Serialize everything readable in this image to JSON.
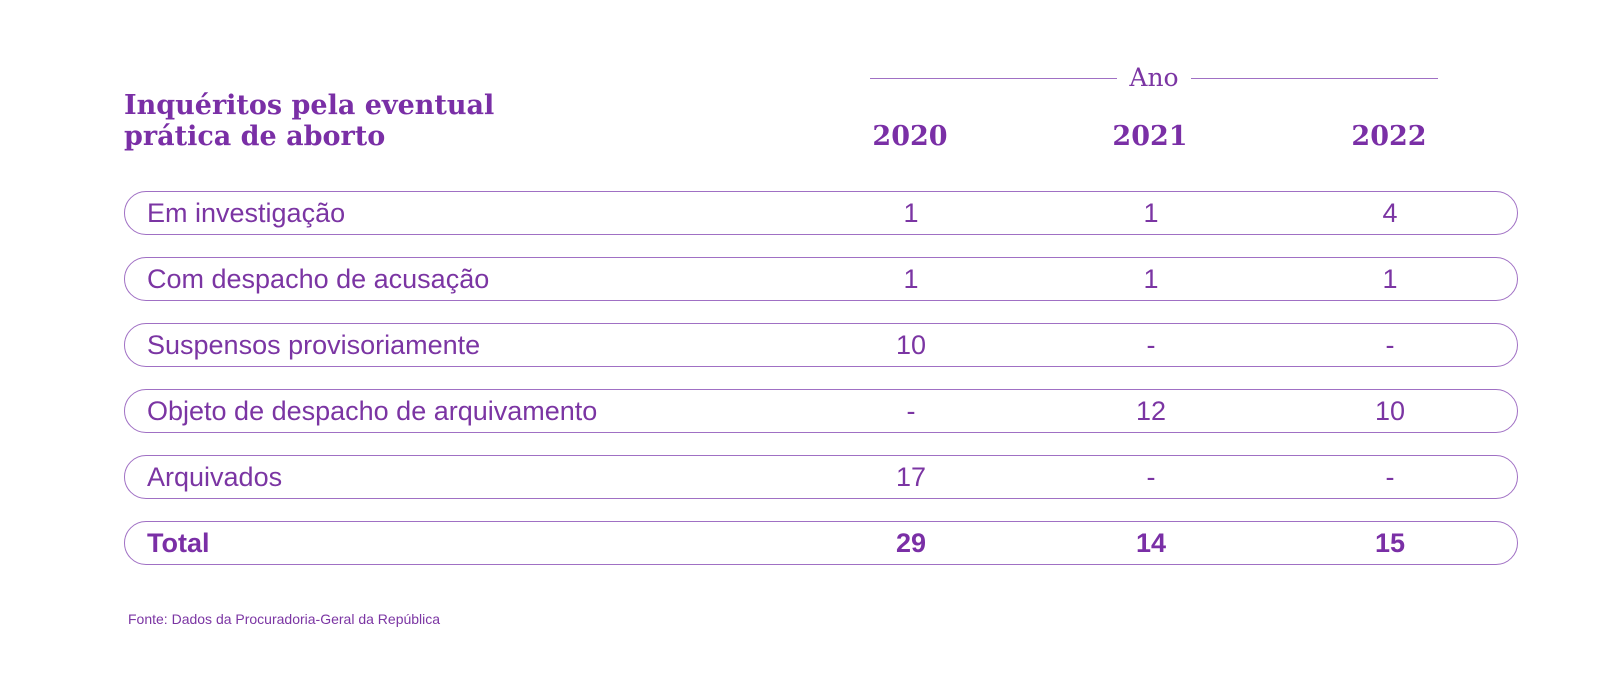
{
  "chart_data": {
    "type": "table",
    "title": "Inquéritos pela eventual prática de aborto",
    "column_group_label": "Ano",
    "columns": [
      "2020",
      "2021",
      "2022"
    ],
    "rows": [
      {
        "label": "Em investigação",
        "values": [
          "1",
          "1",
          "4"
        ]
      },
      {
        "label": "Com despacho de acusação",
        "values": [
          "1",
          "1",
          "1"
        ]
      },
      {
        "label": "Suspensos provisoriamente",
        "values": [
          "10",
          "-",
          "-"
        ]
      },
      {
        "label": "Objeto de despacho de arquivamento",
        "values": [
          "-",
          "12",
          "10"
        ]
      },
      {
        "label": "Arquivados",
        "values": [
          "17",
          "-",
          "-"
        ]
      }
    ],
    "total": {
      "label": "Total",
      "values": [
        "29",
        "14",
        "15"
      ]
    },
    "source": "Fonte: Dados da Procuradoria-Geral da República"
  },
  "colors": {
    "accent": "#7a2fa6",
    "text": "#7b35a3",
    "border": "#a070c4",
    "background": "#ffffff"
  }
}
